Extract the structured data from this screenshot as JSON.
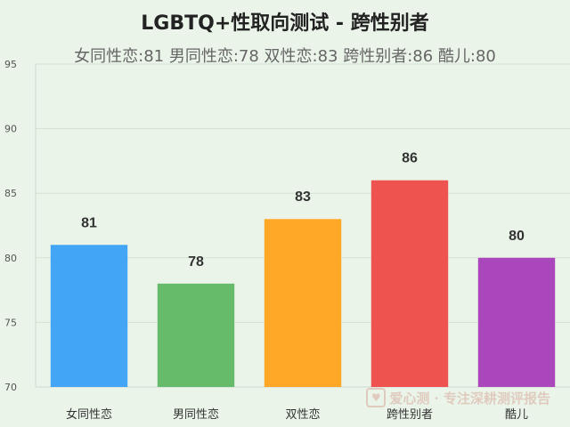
{
  "chart_data": {
    "type": "bar",
    "title": "LGBTQ+性取向测试 - 跨性别者",
    "subtitle": "女同性恋:81 男同性恋:78 双性恋:83 跨性别者:86 酷儿:80",
    "categories": [
      "女同性恋",
      "男同性恋",
      "双性恋",
      "跨性别者",
      "酷儿"
    ],
    "values": [
      81,
      78,
      83,
      86,
      80
    ],
    "colors": [
      "#42a5f5",
      "#66bb6a",
      "#ffa726",
      "#ef5350",
      "#ab47bc"
    ],
    "ylim": [
      70,
      95
    ],
    "yticks": [
      70,
      75,
      80,
      85,
      90,
      95
    ],
    "grid": true,
    "xlabel": "",
    "ylabel": ""
  },
  "watermark": {
    "icon": "heart-icon",
    "text": "爱心测 · 专注深耕测评报告"
  }
}
